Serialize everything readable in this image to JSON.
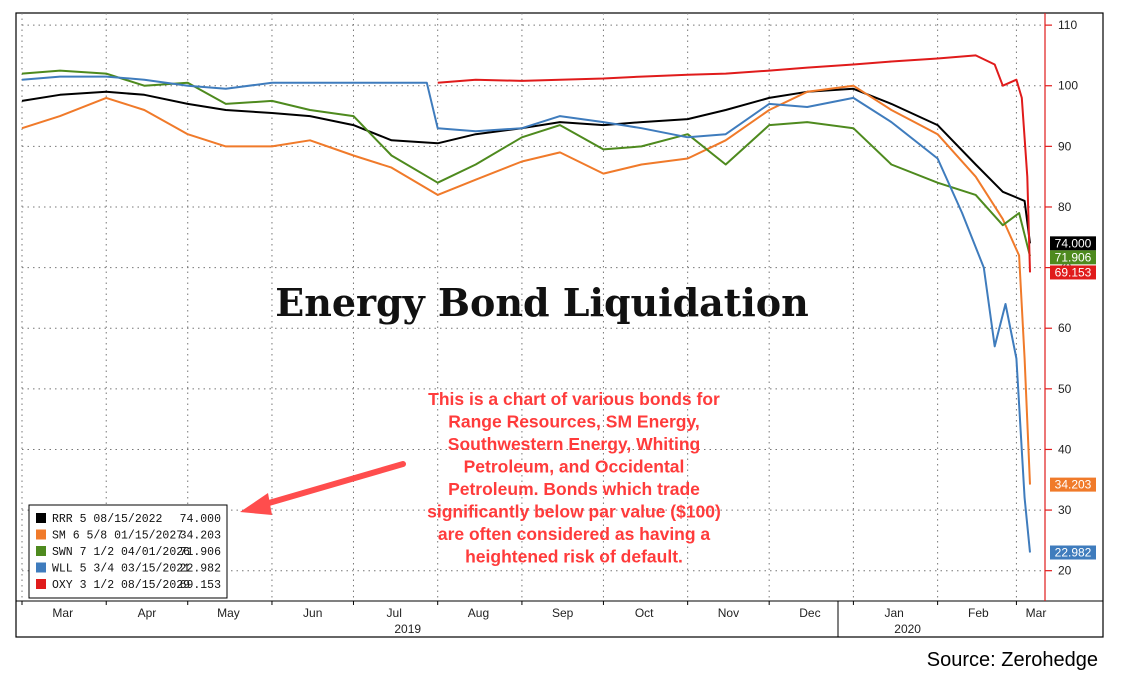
{
  "source": "Source: Zerohedge",
  "colors": {
    "RRR": "#000000",
    "SM": "#f07a2a",
    "SWN": "#4e8a1e",
    "WLL": "#3f7cbd",
    "OXY": "#e01b1b",
    "annotation": "#ff3b3b"
  },
  "chart_data": {
    "type": "line",
    "title": "Energy Bond Liquidation",
    "ylim": [
      15,
      112
    ],
    "y_ticks": [
      20,
      30,
      40,
      50,
      60,
      70,
      80,
      90,
      100,
      110
    ],
    "y_axis_side": "right",
    "grid": true,
    "legend_position": "bottom-left",
    "x_range": [
      "2019-03-01",
      "2020-03-06"
    ],
    "x_ticks": [
      {
        "label": "Mar",
        "date": "2019-03-01"
      },
      {
        "label": "Apr",
        "date": "2019-04-01"
      },
      {
        "label": "May",
        "date": "2019-05-01"
      },
      {
        "label": "Jun",
        "date": "2019-06-01"
      },
      {
        "label": "Jul",
        "date": "2019-07-01"
      },
      {
        "label": "Aug",
        "date": "2019-08-01"
      },
      {
        "label": "Sep",
        "date": "2019-09-01"
      },
      {
        "label": "Oct",
        "date": "2019-10-01"
      },
      {
        "label": "Nov",
        "date": "2019-11-01"
      },
      {
        "label": "Dec",
        "date": "2019-12-01"
      },
      {
        "label": "Jan",
        "date": "2020-01-01"
      },
      {
        "label": "Feb",
        "date": "2020-02-01"
      },
      {
        "label": "Mar",
        "date": "2020-03-01"
      }
    ],
    "year_labels": [
      {
        "label": "2019",
        "date": "2019-08-01"
      },
      {
        "label": "2020",
        "date": "2020-02-01"
      }
    ],
    "annotation": [
      "This is a chart of various bonds for",
      "Range Resources, SM Energy,",
      "Southwestern Energy, Whiting",
      "Petroleum, and Occidental",
      "Petroleum.  Bonds which trade",
      "significantly below par value ($100)",
      "are often considered as having a",
      "heightened risk of default."
    ],
    "series": [
      {
        "name": "RRR 5 08/15/2022",
        "legend_value": "74.000",
        "last_label": "74.000",
        "key": "RRR",
        "points": [
          [
            "2019-03-01",
            97.5
          ],
          [
            "2019-03-15",
            98.5
          ],
          [
            "2019-04-01",
            99
          ],
          [
            "2019-04-15",
            98.5
          ],
          [
            "2019-05-01",
            97
          ],
          [
            "2019-05-15",
            96
          ],
          [
            "2019-06-01",
            95.5
          ],
          [
            "2019-06-15",
            95
          ],
          [
            "2019-07-01",
            93.5
          ],
          [
            "2019-07-15",
            91
          ],
          [
            "2019-08-01",
            90.5
          ],
          [
            "2019-08-15",
            92
          ],
          [
            "2019-09-01",
            93
          ],
          [
            "2019-09-15",
            94
          ],
          [
            "2019-10-01",
            93.5
          ],
          [
            "2019-10-15",
            94
          ],
          [
            "2019-11-01",
            94.5
          ],
          [
            "2019-11-15",
            96
          ],
          [
            "2019-12-01",
            98
          ],
          [
            "2019-12-15",
            99
          ],
          [
            "2020-01-01",
            99.5
          ],
          [
            "2020-01-15",
            97
          ],
          [
            "2020-02-01",
            93.5
          ],
          [
            "2020-02-15",
            87
          ],
          [
            "2020-02-25",
            82.5
          ],
          [
            "2020-03-04",
            81
          ],
          [
            "2020-03-06",
            74
          ]
        ]
      },
      {
        "name": "SM 6 5/8 01/15/2027",
        "legend_value": "34.203",
        "last_label": "34.203",
        "key": "SM",
        "points": [
          [
            "2019-03-01",
            93
          ],
          [
            "2019-03-15",
            95
          ],
          [
            "2019-04-01",
            98
          ],
          [
            "2019-04-15",
            96
          ],
          [
            "2019-05-01",
            92
          ],
          [
            "2019-05-15",
            90
          ],
          [
            "2019-06-01",
            90
          ],
          [
            "2019-06-15",
            91
          ],
          [
            "2019-07-01",
            88.5
          ],
          [
            "2019-07-15",
            86.5
          ],
          [
            "2019-08-01",
            82
          ],
          [
            "2019-08-15",
            84.5
          ],
          [
            "2019-09-01",
            87.5
          ],
          [
            "2019-09-15",
            89
          ],
          [
            "2019-10-01",
            85.5
          ],
          [
            "2019-10-15",
            87
          ],
          [
            "2019-11-01",
            88
          ],
          [
            "2019-11-15",
            91
          ],
          [
            "2019-12-01",
            96
          ],
          [
            "2019-12-15",
            99
          ],
          [
            "2020-01-01",
            100
          ],
          [
            "2020-01-15",
            96
          ],
          [
            "2020-02-01",
            92
          ],
          [
            "2020-02-15",
            85
          ],
          [
            "2020-02-25",
            78
          ],
          [
            "2020-03-02",
            72
          ],
          [
            "2020-03-04",
            55
          ],
          [
            "2020-03-06",
            34.2
          ]
        ]
      },
      {
        "name": "SWN 7 1/2 04/01/2026",
        "legend_value": "71.906",
        "last_label": "71.906",
        "key": "SWN",
        "points": [
          [
            "2019-03-01",
            102
          ],
          [
            "2019-03-15",
            102.5
          ],
          [
            "2019-04-01",
            102
          ],
          [
            "2019-04-15",
            100
          ],
          [
            "2019-05-01",
            100.5
          ],
          [
            "2019-05-15",
            97
          ],
          [
            "2019-06-01",
            97.5
          ],
          [
            "2019-06-15",
            96
          ],
          [
            "2019-07-01",
            95
          ],
          [
            "2019-07-15",
            88.5
          ],
          [
            "2019-08-01",
            84
          ],
          [
            "2019-08-15",
            87
          ],
          [
            "2019-09-01",
            91.5
          ],
          [
            "2019-09-15",
            93.5
          ],
          [
            "2019-10-01",
            89.5
          ],
          [
            "2019-10-15",
            90
          ],
          [
            "2019-11-01",
            92
          ],
          [
            "2019-11-15",
            87
          ],
          [
            "2019-12-01",
            93.5
          ],
          [
            "2019-12-15",
            94
          ],
          [
            "2020-01-01",
            93
          ],
          [
            "2020-01-15",
            87
          ],
          [
            "2020-02-01",
            84
          ],
          [
            "2020-02-15",
            82
          ],
          [
            "2020-02-25",
            77
          ],
          [
            "2020-03-02",
            79
          ],
          [
            "2020-03-06",
            71.9
          ]
        ]
      },
      {
        "name": "WLL 5 3/4 03/15/2021",
        "legend_value": "22.982",
        "last_label": "22.982",
        "key": "WLL",
        "points": [
          [
            "2019-03-01",
            101
          ],
          [
            "2019-03-15",
            101.5
          ],
          [
            "2019-04-01",
            101.5
          ],
          [
            "2019-04-15",
            101
          ],
          [
            "2019-05-01",
            100
          ],
          [
            "2019-05-15",
            99.5
          ],
          [
            "2019-06-01",
            100.5
          ],
          [
            "2019-06-15",
            100.5
          ],
          [
            "2019-07-01",
            100.5
          ],
          [
            "2019-07-15",
            100.5
          ],
          [
            "2019-07-28",
            100.5
          ],
          [
            "2019-08-01",
            93
          ],
          [
            "2019-08-15",
            92.5
          ],
          [
            "2019-09-01",
            93
          ],
          [
            "2019-09-15",
            95
          ],
          [
            "2019-10-01",
            94
          ],
          [
            "2019-10-15",
            93
          ],
          [
            "2019-11-01",
            91.5
          ],
          [
            "2019-11-15",
            92
          ],
          [
            "2019-12-01",
            97
          ],
          [
            "2019-12-15",
            96.5
          ],
          [
            "2020-01-01",
            98
          ],
          [
            "2020-01-15",
            94
          ],
          [
            "2020-02-01",
            88
          ],
          [
            "2020-02-10",
            79
          ],
          [
            "2020-02-18",
            70
          ],
          [
            "2020-02-22",
            57
          ],
          [
            "2020-02-26",
            64
          ],
          [
            "2020-03-01",
            55
          ],
          [
            "2020-03-04",
            32
          ],
          [
            "2020-03-06",
            23
          ]
        ]
      },
      {
        "name": "OXY 3 1/2 08/15/2029",
        "legend_value": "69.153",
        "last_label": "69.153",
        "key": "OXY",
        "points": [
          [
            "2019-08-01",
            100.5
          ],
          [
            "2019-08-15",
            101
          ],
          [
            "2019-09-01",
            100.8
          ],
          [
            "2019-09-15",
            101
          ],
          [
            "2019-10-01",
            101.2
          ],
          [
            "2019-10-15",
            101.5
          ],
          [
            "2019-11-01",
            101.8
          ],
          [
            "2019-11-15",
            102
          ],
          [
            "2019-12-01",
            102.5
          ],
          [
            "2019-12-15",
            103
          ],
          [
            "2020-01-01",
            103.5
          ],
          [
            "2020-01-15",
            104
          ],
          [
            "2020-02-01",
            104.5
          ],
          [
            "2020-02-15",
            105
          ],
          [
            "2020-02-22",
            103.5
          ],
          [
            "2020-02-25",
            100
          ],
          [
            "2020-03-01",
            101
          ],
          [
            "2020-03-03",
            98
          ],
          [
            "2020-03-05",
            85
          ],
          [
            "2020-03-06",
            69.2
          ]
        ]
      }
    ]
  }
}
